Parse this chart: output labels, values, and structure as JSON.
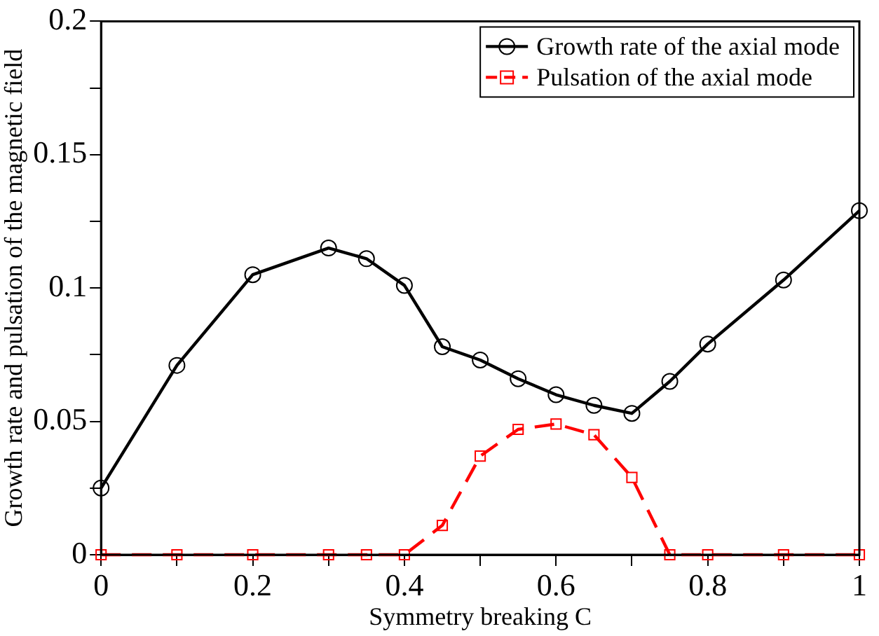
{
  "chart_data": {
    "type": "line",
    "xlabel": "Symmetry breaking C",
    "ylabel": "Growth rate and pulsation of the magnetic field",
    "x": [
      0,
      0.1,
      0.2,
      0.3,
      0.35,
      0.4,
      0.45,
      0.5,
      0.55,
      0.6,
      0.65,
      0.7,
      0.75,
      0.8,
      0.9,
      1
    ],
    "series": [
      {
        "name": "Growth rate of the axial mode",
        "color": "#000000",
        "marker": "circle",
        "line_style": "solid",
        "values": [
          0.025,
          0.071,
          0.105,
          0.115,
          0.111,
          0.101,
          0.078,
          0.073,
          0.066,
          0.06,
          0.056,
          0.053,
          0.065,
          0.079,
          0.103,
          0.129
        ]
      },
      {
        "name": "Pulsation of the axial mode",
        "color": "#ff0000",
        "marker": "square",
        "line_style": "dashed",
        "values": [
          0,
          0,
          0,
          0,
          0,
          0,
          0.011,
          0.037,
          0.047,
          0.049,
          0.045,
          0.029,
          0,
          0,
          0,
          0
        ]
      }
    ],
    "xlim": [
      0,
      1
    ],
    "xticks": [
      0,
      {
        "value": 0.1,
        "label": null
      },
      0.2,
      {
        "value": 0.3,
        "label": null
      },
      0.4,
      {
        "value": 0.5,
        "label": null
      },
      0.6,
      {
        "value": 0.7,
        "label": null
      },
      0.8,
      {
        "value": 0.9,
        "label": null
      },
      1
    ],
    "ylim": [
      0,
      0.2
    ],
    "yticks": [
      0,
      {
        "value": 0.025,
        "label": null
      },
      0.05,
      {
        "value": 0.075,
        "label": null
      },
      0.1,
      {
        "value": 0.125,
        "label": null
      },
      0.15,
      {
        "value": 0.175,
        "label": null
      },
      0.2
    ],
    "grid": false,
    "legend": "top right"
  }
}
